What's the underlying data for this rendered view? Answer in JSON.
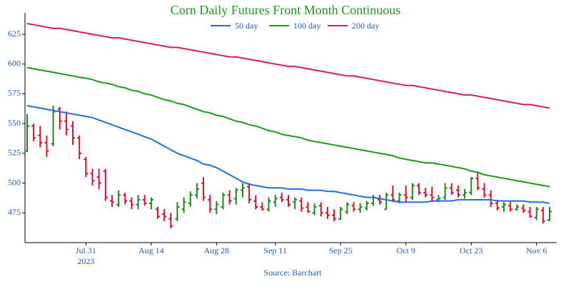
{
  "chart_data": {
    "type": "ohlc",
    "title": "Corn Daily Futures Front Month Continuous",
    "source": "Source: Barchart",
    "x_year_label": "2023",
    "title_color": "#1a9a1a",
    "up_color": "#1a8a1a",
    "down_color": "#e0102b",
    "categories": [
      null,
      null,
      null,
      null,
      null,
      null,
      null,
      null,
      null,
      "Jul 31",
      null,
      null,
      null,
      null,
      null,
      null,
      null,
      null,
      null,
      "Aug 14",
      null,
      null,
      null,
      null,
      null,
      null,
      null,
      null,
      null,
      "Aug 28",
      null,
      null,
      null,
      null,
      null,
      null,
      null,
      null,
      "Sep 11",
      null,
      null,
      null,
      null,
      null,
      null,
      null,
      null,
      null,
      "Sep 25",
      null,
      null,
      null,
      null,
      null,
      null,
      null,
      null,
      null,
      "Oct 9",
      null,
      null,
      null,
      null,
      null,
      null,
      null,
      null,
      null,
      "Oct 23",
      null,
      null,
      null,
      null,
      null,
      null,
      null,
      null,
      null,
      "Nov 6",
      null,
      null
    ],
    "open": [
      527,
      548,
      540,
      534,
      533,
      562,
      552,
      548,
      538,
      520,
      508,
      505,
      510,
      485,
      482,
      490,
      485,
      482,
      486,
      483,
      478,
      474,
      470,
      470,
      478,
      483,
      490,
      500,
      486,
      478,
      480,
      490,
      487,
      494,
      497,
      485,
      480,
      478,
      484,
      488,
      486,
      484,
      485,
      480,
      475,
      481,
      475,
      473,
      470,
      476,
      481,
      478,
      479,
      483,
      486,
      478,
      490,
      485,
      490,
      488,
      498,
      492,
      490,
      486,
      488,
      496,
      494,
      490,
      492,
      504,
      495,
      490,
      483,
      480,
      481,
      478,
      479,
      476,
      471,
      477,
      469
    ],
    "high": [
      558,
      550,
      548,
      540,
      565,
      564,
      560,
      552,
      540,
      522,
      512,
      512,
      512,
      490,
      494,
      492,
      488,
      490,
      490,
      488,
      480,
      478,
      475,
      484,
      488,
      493,
      500,
      505,
      490,
      485,
      492,
      494,
      496,
      500,
      500,
      490,
      484,
      488,
      490,
      492,
      490,
      488,
      488,
      484,
      483,
      484,
      480,
      478,
      480,
      484,
      484,
      483,
      485,
      490,
      490,
      492,
      498,
      492,
      498,
      500,
      500,
      496,
      497,
      490,
      500,
      500,
      498,
      495,
      505,
      510,
      500,
      494,
      486,
      484,
      485,
      482,
      482,
      480,
      480,
      480,
      480
    ],
    "low": [
      526,
      535,
      530,
      522,
      531,
      545,
      540,
      532,
      520,
      505,
      498,
      495,
      485,
      480,
      480,
      482,
      478,
      478,
      481,
      478,
      470,
      468,
      462,
      468,
      475,
      480,
      487,
      485,
      475,
      474,
      478,
      482,
      482,
      488,
      483,
      478,
      477,
      476,
      480,
      484,
      480,
      478,
      476,
      475,
      473,
      472,
      470,
      468,
      469,
      474,
      476,
      475,
      477,
      481,
      482,
      478,
      484,
      483,
      484,
      486,
      490,
      488,
      484,
      484,
      486,
      490,
      488,
      487,
      490,
      494,
      488,
      480,
      477,
      476,
      476,
      477,
      475,
      471,
      469,
      466,
      468
    ],
    "close": [
      548,
      538,
      534,
      527,
      560,
      552,
      545,
      538,
      525,
      508,
      502,
      500,
      488,
      484,
      490,
      485,
      482,
      486,
      483,
      486,
      472,
      472,
      464,
      480,
      484,
      490,
      495,
      488,
      478,
      482,
      490,
      485,
      494,
      496,
      486,
      480,
      478,
      485,
      487,
      486,
      482,
      486,
      479,
      476,
      480,
      475,
      473,
      470,
      478,
      482,
      478,
      480,
      483,
      488,
      484,
      490,
      486,
      490,
      488,
      498,
      492,
      490,
      488,
      487,
      496,
      492,
      490,
      492,
      504,
      496,
      490,
      483,
      479,
      482,
      478,
      480,
      477,
      472,
      478,
      468,
      476
    ],
    "series": [
      {
        "name": "50 day",
        "color": "#1f6fdf",
        "values": [
          565,
          564,
          563,
          562,
          561,
          560,
          559,
          558,
          557,
          556,
          555,
          553,
          551,
          549,
          547,
          545,
          543,
          541,
          539,
          537,
          534,
          531,
          528,
          525,
          523,
          521,
          519,
          516,
          515,
          513,
          510,
          507,
          504,
          501,
          499,
          498,
          497,
          496,
          496,
          496,
          495,
          495,
          495,
          494,
          494,
          494,
          493,
          493,
          492,
          491,
          490,
          489,
          488,
          488,
          487,
          486,
          485,
          484,
          484,
          484,
          484,
          484,
          485,
          485,
          485,
          485,
          486,
          486,
          486,
          486,
          486,
          486,
          485,
          485,
          485,
          485,
          485,
          484,
          484,
          484,
          483
        ]
      },
      {
        "name": "100 day",
        "color": "#1a9a1a",
        "values": [
          597,
          596,
          595,
          594,
          593,
          592,
          591,
          590,
          589,
          588,
          587,
          585,
          584,
          583,
          581,
          580,
          578,
          577,
          575,
          574,
          572,
          570,
          569,
          567,
          566,
          564,
          562,
          560,
          559,
          557,
          556,
          554,
          552,
          551,
          549,
          548,
          546,
          544,
          543,
          541,
          540,
          539,
          538,
          536,
          535,
          534,
          533,
          532,
          531,
          530,
          529,
          528,
          527,
          526,
          525,
          524,
          523,
          521,
          520,
          519,
          518,
          517,
          517,
          516,
          515,
          514,
          513,
          512,
          510,
          509,
          507,
          506,
          505,
          504,
          503,
          502,
          501,
          500,
          499,
          498,
          497
        ]
      },
      {
        "name": "200 day",
        "color": "#dc1f4a",
        "values": [
          634,
          633,
          632,
          631,
          630,
          630,
          629,
          628,
          627,
          626,
          625,
          624,
          623,
          622,
          622,
          621,
          620,
          619,
          618,
          617,
          616,
          615,
          614,
          614,
          613,
          612,
          611,
          610,
          609,
          608,
          607,
          606,
          606,
          605,
          604,
          603,
          602,
          601,
          600,
          599,
          598,
          598,
          597,
          596,
          595,
          594,
          593,
          592,
          591,
          590,
          590,
          589,
          588,
          587,
          586,
          585,
          584,
          583,
          582,
          582,
          581,
          580,
          579,
          578,
          577,
          576,
          575,
          574,
          574,
          573,
          572,
          571,
          570,
          569,
          568,
          567,
          566,
          566,
          565,
          564,
          563
        ]
      }
    ],
    "ylim": [
      450,
      643
    ],
    "yticks": [
      475,
      500,
      525,
      550,
      575,
      600,
      625
    ]
  }
}
